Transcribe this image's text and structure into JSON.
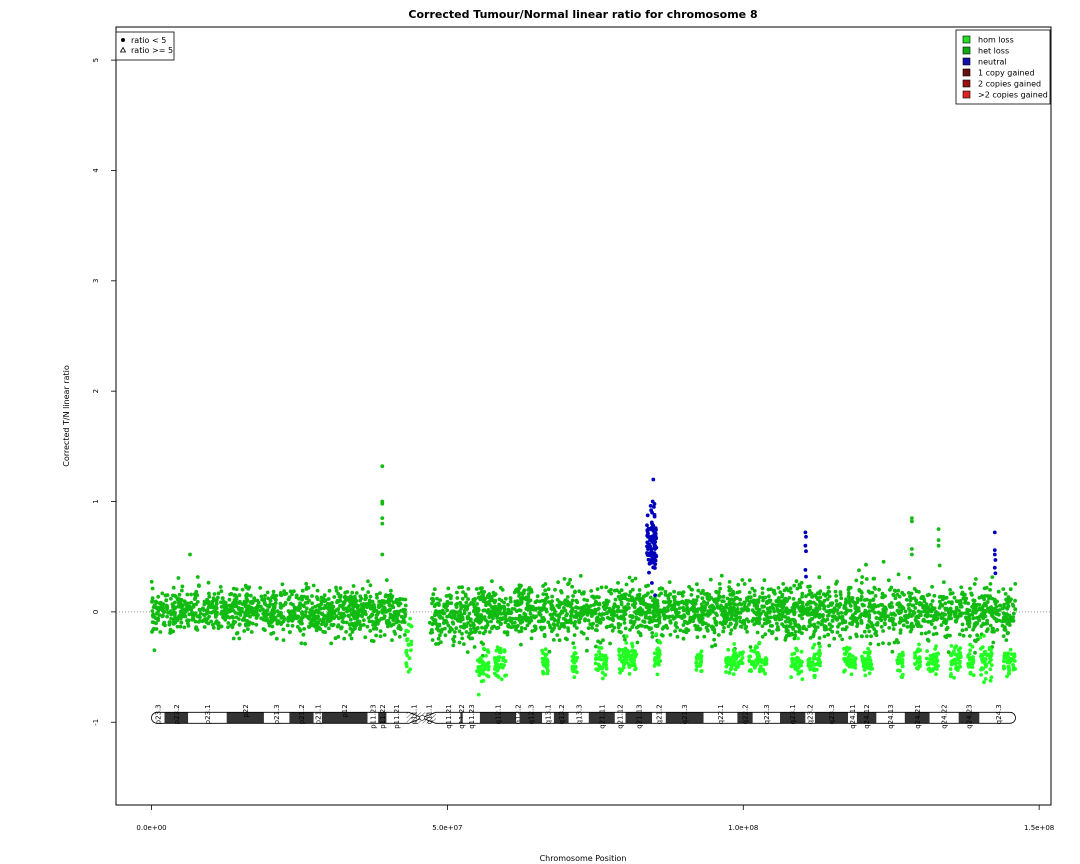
{
  "chart_data": {
    "type": "scatter",
    "title": "Corrected Tumour/Normal linear ratio for chromosome  8",
    "xlabel": "Chromosome Position",
    "ylabel": "Corrected T/N linear ratio",
    "xlim": [
      -6000000,
      152000000
    ],
    "ylim": [
      -1.75,
      5.3
    ],
    "x_ticks": [
      {
        "value": 0,
        "label": "0.0e+00"
      },
      {
        "value": 50000000,
        "label": "5.0e+07"
      },
      {
        "value": 100000000,
        "label": "1.0e+08"
      },
      {
        "value": 150000000,
        "label": "1.5e+08"
      }
    ],
    "y_ticks": [
      {
        "value": -1,
        "label": "-1"
      },
      {
        "value": 0,
        "label": "0"
      },
      {
        "value": 1,
        "label": "1"
      },
      {
        "value": 2,
        "label": "2"
      },
      {
        "value": 3,
        "label": "3"
      },
      {
        "value": 4,
        "label": "4"
      },
      {
        "value": 5,
        "label": "5"
      }
    ],
    "reference_line": {
      "y": 0,
      "style": "dotted"
    },
    "shape_legend": {
      "position": "top-left",
      "items": [
        {
          "symbol": "circle",
          "label": "ratio < 5"
        },
        {
          "symbol": "triangle",
          "label": "ratio >= 5"
        }
      ]
    },
    "color_legend": {
      "position": "top-right",
      "items": [
        {
          "label": "hom loss",
          "color": "#22dd22"
        },
        {
          "label": "het loss",
          "color": "#11aa11"
        },
        {
          "label": "neutral",
          "color": "#1111aa"
        },
        {
          "label": "1 copy gained",
          "color": "#661111"
        },
        {
          "label": "2 copies gained",
          "color": "#991111"
        },
        {
          "label": ">2 copies gained",
          "color": "#dd2222"
        }
      ]
    },
    "series_colors": {
      "het_loss": "#11bb11",
      "hom_loss": "#22ff22",
      "neutral": "#0000bb"
    },
    "segments": [
      {
        "start": 0,
        "end": 43000000,
        "mean": 0.0,
        "sd": 0.1,
        "state": "het_loss"
      },
      {
        "start": 43000000,
        "end": 44000000,
        "mean": -0.3,
        "sd": 0.15,
        "state": "hom_loss"
      },
      {
        "start": 47000000,
        "end": 55000000,
        "mean": -0.05,
        "sd": 0.12,
        "state": "het_loss"
      },
      {
        "start": 55000000,
        "end": 84000000,
        "mean": 0.0,
        "sd": 0.12,
        "state": "het_loss"
      },
      {
        "start": 84000000,
        "end": 146000000,
        "mean": 0.0,
        "sd": 0.12,
        "state": "het_loss"
      }
    ],
    "low_clusters": [
      {
        "start": 55000000,
        "end": 57000000,
        "mean": -0.5,
        "sd": 0.08
      },
      {
        "start": 58000000,
        "end": 60000000,
        "mean": -0.45,
        "sd": 0.08
      },
      {
        "start": 66000000,
        "end": 67000000,
        "mean": -0.45,
        "sd": 0.06
      },
      {
        "start": 71000000,
        "end": 72000000,
        "mean": -0.45,
        "sd": 0.06
      },
      {
        "start": 75000000,
        "end": 77000000,
        "mean": -0.45,
        "sd": 0.06
      },
      {
        "start": 79000000,
        "end": 82000000,
        "mean": -0.42,
        "sd": 0.08
      },
      {
        "start": 85000000,
        "end": 86000000,
        "mean": -0.4,
        "sd": 0.06
      },
      {
        "start": 92000000,
        "end": 93000000,
        "mean": -0.45,
        "sd": 0.06
      },
      {
        "start": 97000000,
        "end": 100000000,
        "mean": -0.45,
        "sd": 0.07
      },
      {
        "start": 101000000,
        "end": 104000000,
        "mean": -0.45,
        "sd": 0.07
      },
      {
        "start": 108000000,
        "end": 110000000,
        "mean": -0.45,
        "sd": 0.07
      },
      {
        "start": 111000000,
        "end": 113000000,
        "mean": -0.45,
        "sd": 0.06
      },
      {
        "start": 117000000,
        "end": 119000000,
        "mean": -0.45,
        "sd": 0.06
      },
      {
        "start": 120000000,
        "end": 122000000,
        "mean": -0.45,
        "sd": 0.06
      },
      {
        "start": 126000000,
        "end": 127000000,
        "mean": -0.45,
        "sd": 0.06
      },
      {
        "start": 129000000,
        "end": 130000000,
        "mean": -0.45,
        "sd": 0.06
      },
      {
        "start": 131000000,
        "end": 133000000,
        "mean": -0.45,
        "sd": 0.06
      },
      {
        "start": 135000000,
        "end": 137000000,
        "mean": -0.45,
        "sd": 0.07
      },
      {
        "start": 138000000,
        "end": 139000000,
        "mean": -0.45,
        "sd": 0.06
      },
      {
        "start": 140000000,
        "end": 142000000,
        "mean": -0.42,
        "sd": 0.08
      },
      {
        "start": 144000000,
        "end": 146000000,
        "mean": -0.45,
        "sd": 0.06
      }
    ],
    "highlight_points": [
      {
        "x": 39000000,
        "y": 1.32,
        "state": "het_loss"
      },
      {
        "x": 39000000,
        "y": 1.0,
        "state": "het_loss"
      },
      {
        "x": 39000000,
        "y": 0.98,
        "state": "het_loss"
      },
      {
        "x": 39000000,
        "y": 0.85,
        "state": "het_loss"
      },
      {
        "x": 39000000,
        "y": 0.8,
        "state": "het_loss"
      },
      {
        "x": 39000000,
        "y": 0.52,
        "state": "het_loss"
      },
      {
        "x": 6500000,
        "y": 0.52,
        "state": "het_loss"
      },
      {
        "x": 84800000,
        "y": 1.2,
        "state": "neutral"
      },
      {
        "x": 84700000,
        "y": 1.0,
        "state": "neutral"
      },
      {
        "x": 84900000,
        "y": 0.95,
        "state": "neutral"
      },
      {
        "x": 84600000,
        "y": 0.9,
        "state": "neutral"
      },
      {
        "x": 85000000,
        "y": 0.88,
        "state": "neutral"
      },
      {
        "x": 85100000,
        "y": 0.15,
        "state": "neutral"
      },
      {
        "x": 110500000,
        "y": 0.72,
        "state": "neutral"
      },
      {
        "x": 110600000,
        "y": 0.68,
        "state": "neutral"
      },
      {
        "x": 110500000,
        "y": 0.6,
        "state": "neutral"
      },
      {
        "x": 110600000,
        "y": 0.55,
        "state": "neutral"
      },
      {
        "x": 110500000,
        "y": 0.38,
        "state": "neutral"
      },
      {
        "x": 110600000,
        "y": 0.32,
        "state": "neutral"
      },
      {
        "x": 128500000,
        "y": 0.85,
        "state": "het_loss"
      },
      {
        "x": 128500000,
        "y": 0.82,
        "state": "het_loss"
      },
      {
        "x": 128500000,
        "y": 0.57,
        "state": "het_loss"
      },
      {
        "x": 128500000,
        "y": 0.52,
        "state": "het_loss"
      },
      {
        "x": 133000000,
        "y": 0.75,
        "state": "het_loss"
      },
      {
        "x": 133000000,
        "y": 0.65,
        "state": "het_loss"
      },
      {
        "x": 133000000,
        "y": 0.6,
        "state": "het_loss"
      },
      {
        "x": 133200000,
        "y": 0.42,
        "state": "het_loss"
      },
      {
        "x": 142500000,
        "y": 0.72,
        "state": "neutral"
      },
      {
        "x": 142500000,
        "y": 0.56,
        "state": "neutral"
      },
      {
        "x": 142500000,
        "y": 0.52,
        "state": "neutral"
      },
      {
        "x": 142600000,
        "y": 0.47,
        "state": "neutral"
      },
      {
        "x": 142500000,
        "y": 0.4,
        "state": "neutral"
      },
      {
        "x": 142600000,
        "y": 0.35,
        "state": "neutral"
      }
    ],
    "neutral_cluster": {
      "start": 83700000,
      "end": 85300000,
      "mean": 0.62,
      "sd": 0.13
    },
    "ideogram": {
      "y": -0.96,
      "start": 0,
      "end": 146000000,
      "centromere": {
        "start": 43500000,
        "end": 48000000
      },
      "bands": [
        {
          "name": "p23.3",
          "start": 0,
          "end": 2200000,
          "stain": "gneg"
        },
        {
          "name": "p23.2",
          "start": 2200000,
          "end": 6200000,
          "stain": "gpos"
        },
        {
          "name": "p23.1",
          "start": 6200000,
          "end": 12700000,
          "stain": "gneg"
        },
        {
          "name": "p22",
          "start": 12700000,
          "end": 19000000,
          "stain": "gpos"
        },
        {
          "name": "p21.3",
          "start": 19000000,
          "end": 23300000,
          "stain": "gneg"
        },
        {
          "name": "p21.2",
          "start": 23300000,
          "end": 27400000,
          "stain": "gpos"
        },
        {
          "name": "p21.1",
          "start": 27400000,
          "end": 28800000,
          "stain": "gneg"
        },
        {
          "name": "p12",
          "start": 28800000,
          "end": 36500000,
          "stain": "gpos"
        },
        {
          "name": "p11.23",
          "start": 36500000,
          "end": 38300000,
          "stain": "gneg"
        },
        {
          "name": "p11.22",
          "start": 38300000,
          "end": 39700000,
          "stain": "gpos"
        },
        {
          "name": "p11.21",
          "start": 39700000,
          "end": 43100000,
          "stain": "gneg"
        },
        {
          "name": "p11.1",
          "start": 43100000,
          "end": 45600000,
          "stain": "acen"
        },
        {
          "name": "q11.1",
          "start": 45600000,
          "end": 48100000,
          "stain": "acen"
        },
        {
          "name": "q11.21",
          "start": 48100000,
          "end": 52200000,
          "stain": "gneg"
        },
        {
          "name": "q11.22",
          "start": 52200000,
          "end": 52600000,
          "stain": "gpos"
        },
        {
          "name": "q11.23",
          "start": 52600000,
          "end": 55500000,
          "stain": "gneg"
        },
        {
          "name": "q12.1",
          "start": 55500000,
          "end": 61600000,
          "stain": "gpos"
        },
        {
          "name": "q12.2",
          "start": 61600000,
          "end": 62200000,
          "stain": "gneg"
        },
        {
          "name": "q12.3",
          "start": 62200000,
          "end": 66000000,
          "stain": "gpos"
        },
        {
          "name": "q13.1",
          "start": 66000000,
          "end": 68000000,
          "stain": "gneg"
        },
        {
          "name": "q13.2",
          "start": 68000000,
          "end": 70500000,
          "stain": "gpos"
        },
        {
          "name": "q13.3",
          "start": 70500000,
          "end": 73900000,
          "stain": "gneg"
        },
        {
          "name": "q21.11",
          "start": 73900000,
          "end": 78300000,
          "stain": "gpos"
        },
        {
          "name": "q21.12",
          "start": 78300000,
          "end": 80100000,
          "stain": "gneg"
        },
        {
          "name": "q21.13",
          "start": 80100000,
          "end": 84600000,
          "stain": "gpos"
        },
        {
          "name": "q21.2",
          "start": 84600000,
          "end": 86900000,
          "stain": "gneg"
        },
        {
          "name": "q21.3",
          "start": 86900000,
          "end": 93300000,
          "stain": "gpos"
        },
        {
          "name": "q22.1",
          "start": 93300000,
          "end": 99000000,
          "stain": "gneg"
        },
        {
          "name": "q22.2",
          "start": 99000000,
          "end": 101600000,
          "stain": "gpos"
        },
        {
          "name": "q22.3",
          "start": 101600000,
          "end": 106200000,
          "stain": "gneg"
        },
        {
          "name": "q23.1",
          "start": 106200000,
          "end": 110500000,
          "stain": "gpos"
        },
        {
          "name": "q23.2",
          "start": 110500000,
          "end": 112100000,
          "stain": "gneg"
        },
        {
          "name": "q23.3",
          "start": 112100000,
          "end": 117700000,
          "stain": "gpos"
        },
        {
          "name": "q24.11",
          "start": 117700000,
          "end": 119200000,
          "stain": "gneg"
        },
        {
          "name": "q24.12",
          "start": 119200000,
          "end": 122500000,
          "stain": "gpos"
        },
        {
          "name": "q24.13",
          "start": 122500000,
          "end": 127300000,
          "stain": "gneg"
        },
        {
          "name": "q24.21",
          "start": 127300000,
          "end": 131500000,
          "stain": "gpos"
        },
        {
          "name": "q24.22",
          "start": 131500000,
          "end": 136400000,
          "stain": "gneg"
        },
        {
          "name": "q24.23",
          "start": 136400000,
          "end": 139900000,
          "stain": "gpos"
        },
        {
          "name": "q24.3",
          "start": 139900000,
          "end": 146300000,
          "stain": "gneg"
        }
      ]
    }
  }
}
